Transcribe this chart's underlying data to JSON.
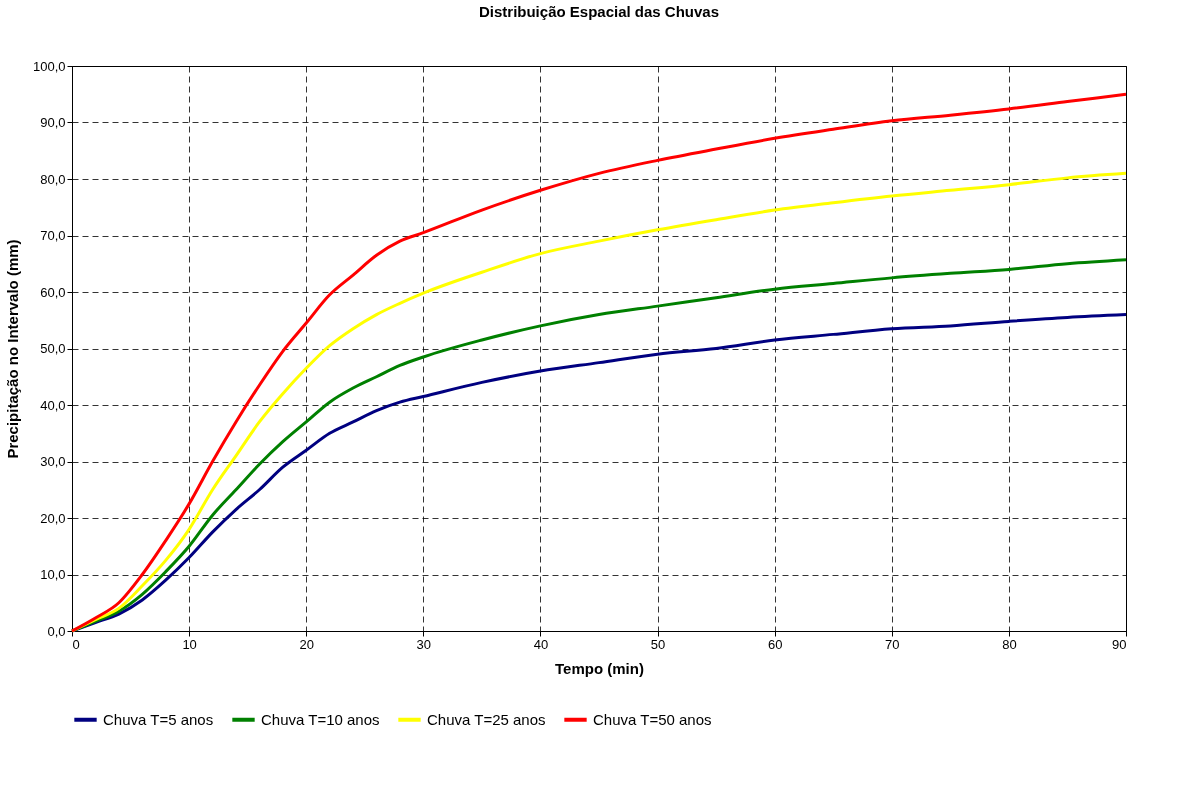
{
  "chart_data": {
    "type": "line",
    "title": "Distribuição Espacial das Chuvas",
    "xlabel": "Tempo (min)",
    "ylabel": "Precipitação no Intervalo (mm)",
    "x": [
      0,
      2,
      4,
      6,
      8,
      10,
      12,
      14,
      16,
      18,
      20,
      22,
      24,
      26,
      28,
      30,
      35,
      40,
      45,
      50,
      55,
      60,
      65,
      70,
      75,
      80,
      85,
      90
    ],
    "series": [
      {
        "name": "Chuva T=5 anos",
        "color": "#000080",
        "values": [
          0,
          1.5,
          3,
          5.5,
          9,
          13,
          17.5,
          21.5,
          25,
          29,
          32,
          35,
          37,
          39,
          40.5,
          41.5,
          44,
          46,
          47.5,
          49,
          50,
          51.5,
          52.5,
          53.5,
          54,
          54.8,
          55.5,
          56
        ]
      },
      {
        "name": "Chuva T=10 anos",
        "color": "#008000",
        "values": [
          0,
          1.7,
          3.5,
          6.5,
          10.5,
          15,
          20.5,
          25,
          29.5,
          33.5,
          37,
          40.5,
          43,
          45,
          47,
          48.5,
          51.5,
          54,
          56,
          57.5,
          59,
          60.5,
          61.5,
          62.5,
          63.3,
          64,
          65,
          65.7
        ]
      },
      {
        "name": "Chuva T=25 anos",
        "color": "#ffff00",
        "values": [
          0,
          2,
          4,
          8,
          12.5,
          18,
          25,
          31,
          37,
          42,
          46.5,
          50.5,
          53.5,
          56,
          58,
          59.8,
          63.5,
          66.8,
          69,
          71,
          72.8,
          74.5,
          75.8,
          77,
          78,
          79,
          80.2,
          81
        ]
      },
      {
        "name": "Chuva T=50 anos",
        "color": "#ff0000",
        "values": [
          0,
          2.3,
          5,
          10,
          16,
          22.5,
          30,
          37,
          43.5,
          49.5,
          54.5,
          59.5,
          63,
          66.5,
          69,
          70.5,
          74.5,
          78,
          81,
          83.3,
          85.3,
          87.2,
          88.8,
          90.3,
          91.3,
          92.4,
          93.7,
          95
        ]
      }
    ],
    "xlim": [
      0,
      90
    ],
    "xticks": [
      0,
      10,
      20,
      30,
      40,
      50,
      60,
      70,
      80,
      90
    ],
    "ylim": [
      0,
      100
    ],
    "yticks": [
      {
        "value": 0,
        "label": "0,0"
      },
      {
        "value": 10,
        "label": "10,0"
      },
      {
        "value": 20,
        "label": "20,0"
      },
      {
        "value": 30,
        "label": "30,0"
      },
      {
        "value": 40,
        "label": "40,0"
      },
      {
        "value": 50,
        "label": "50,0"
      },
      {
        "value": 60,
        "label": "60,0"
      },
      {
        "value": 70,
        "label": "70,0"
      },
      {
        "value": 80,
        "label": "80,0"
      },
      {
        "value": 90,
        "label": "90,0"
      },
      {
        "value": 100,
        "label": "100,0"
      }
    ],
    "grid": true,
    "legend": "bottom",
    "line_style": "solid"
  }
}
